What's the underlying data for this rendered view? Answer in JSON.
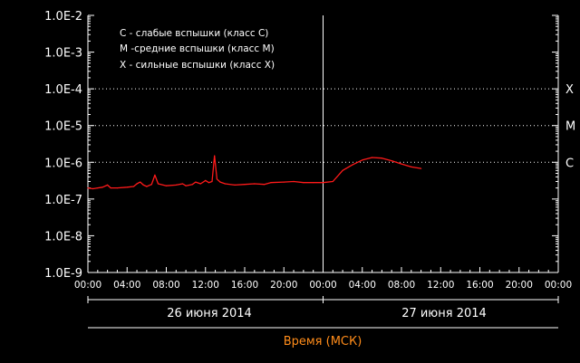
{
  "colors": {
    "background": "#000000",
    "axes": "#ffffff",
    "series": "#ff1a1a",
    "xaxis_title": "#ff8c1a"
  },
  "legend": [
    "C - слабые вспышки (класс C)",
    "M -средние вспышки (класс M)",
    "X - сильные вспышки (класс X)"
  ],
  "class_labels": [
    {
      "name": "X",
      "value": 0.0001
    },
    {
      "name": "M",
      "value": 1e-05
    },
    {
      "name": "C",
      "value": 1e-06
    }
  ],
  "dates": [
    "26 июня 2014",
    "27 июня 2014"
  ],
  "xaxis_title": "Время (МСК)",
  "chart_data": {
    "type": "line",
    "title": "",
    "xlabel": "Время (МСК)",
    "ylabel": "",
    "y_scale": "log",
    "ylim": [
      1e-09,
      0.01
    ],
    "y_ticks": [
      "1.0E-9",
      "1.0E-8",
      "1.0E-7",
      "1.0E-6",
      "1.0E-5",
      "1.0E-4",
      "1.0E-3",
      "1.0E-2"
    ],
    "xlim": [
      "2014-06-26T00:00",
      "2014-06-28T00:00"
    ],
    "x_ticks": [
      "00:00",
      "04:00",
      "08:00",
      "12:00",
      "16:00",
      "20:00",
      "00:00",
      "04:00",
      "08:00",
      "12:00",
      "16:00",
      "20:00",
      "00:00"
    ],
    "reference_lines": [
      {
        "label": "X",
        "value": 0.0001
      },
      {
        "label": "M",
        "value": 1e-05
      },
      {
        "label": "C",
        "value": 1e-06
      }
    ],
    "series": [
      {
        "points": [
          [
            "2014-06-26T00:00",
            2e-07
          ],
          [
            "2014-06-26T00:30",
            1.9e-07
          ],
          [
            "2014-06-26T01:00",
            2e-07
          ],
          [
            "2014-06-26T01:30",
            2.1e-07
          ],
          [
            "2014-06-26T02:00",
            2.4e-07
          ],
          [
            "2014-06-26T02:20",
            2e-07
          ],
          [
            "2014-06-26T03:00",
            2e-07
          ],
          [
            "2014-06-26T04:00",
            2.1e-07
          ],
          [
            "2014-06-26T04:40",
            2.2e-07
          ],
          [
            "2014-06-26T05:00",
            2.6e-07
          ],
          [
            "2014-06-26T05:20",
            2.9e-07
          ],
          [
            "2014-06-26T05:40",
            2.4e-07
          ],
          [
            "2014-06-26T06:00",
            2.2e-07
          ],
          [
            "2014-06-26T06:30",
            2.5e-07
          ],
          [
            "2014-06-26T06:50",
            4.5e-07
          ],
          [
            "2014-06-26T07:10",
            2.6e-07
          ],
          [
            "2014-06-26T08:00",
            2.3e-07
          ],
          [
            "2014-06-26T09:00",
            2.4e-07
          ],
          [
            "2014-06-26T09:40",
            2.6e-07
          ],
          [
            "2014-06-26T10:00",
            2.3e-07
          ],
          [
            "2014-06-26T10:40",
            2.5e-07
          ],
          [
            "2014-06-26T11:00",
            2.9e-07
          ],
          [
            "2014-06-26T11:30",
            2.6e-07
          ],
          [
            "2014-06-26T12:00",
            3.2e-07
          ],
          [
            "2014-06-26T12:20",
            2.8e-07
          ],
          [
            "2014-06-26T12:40",
            3e-07
          ],
          [
            "2014-06-26T12:55",
            1.5e-06
          ],
          [
            "2014-06-26T13:10",
            3.5e-07
          ],
          [
            "2014-06-26T13:30",
            2.9e-07
          ],
          [
            "2014-06-26T14:00",
            2.6e-07
          ],
          [
            "2014-06-26T15:00",
            2.4e-07
          ],
          [
            "2014-06-26T16:00",
            2.5e-07
          ],
          [
            "2014-06-26T17:00",
            2.6e-07
          ],
          [
            "2014-06-26T18:00",
            2.5e-07
          ],
          [
            "2014-06-26T18:40",
            2.8e-07
          ],
          [
            "2014-06-26T20:00",
            2.9e-07
          ],
          [
            "2014-06-26T21:00",
            3e-07
          ],
          [
            "2014-06-26T22:00",
            2.8e-07
          ],
          [
            "2014-06-26T23:00",
            2.8e-07
          ],
          [
            "2014-06-27T00:00",
            2.8e-07
          ],
          [
            "2014-06-27T01:00",
            3e-07
          ],
          [
            "2014-06-27T02:00",
            6e-07
          ],
          [
            "2014-06-27T03:00",
            8.5e-07
          ],
          [
            "2014-06-27T04:00",
            1.15e-06
          ],
          [
            "2014-06-27T05:00",
            1.35e-06
          ],
          [
            "2014-06-27T06:00",
            1.3e-06
          ],
          [
            "2014-06-27T07:00",
            1.1e-06
          ],
          [
            "2014-06-27T08:00",
            9e-07
          ],
          [
            "2014-06-27T09:00",
            7.5e-07
          ],
          [
            "2014-06-27T10:00",
            6.8e-07
          ]
        ]
      }
    ]
  }
}
